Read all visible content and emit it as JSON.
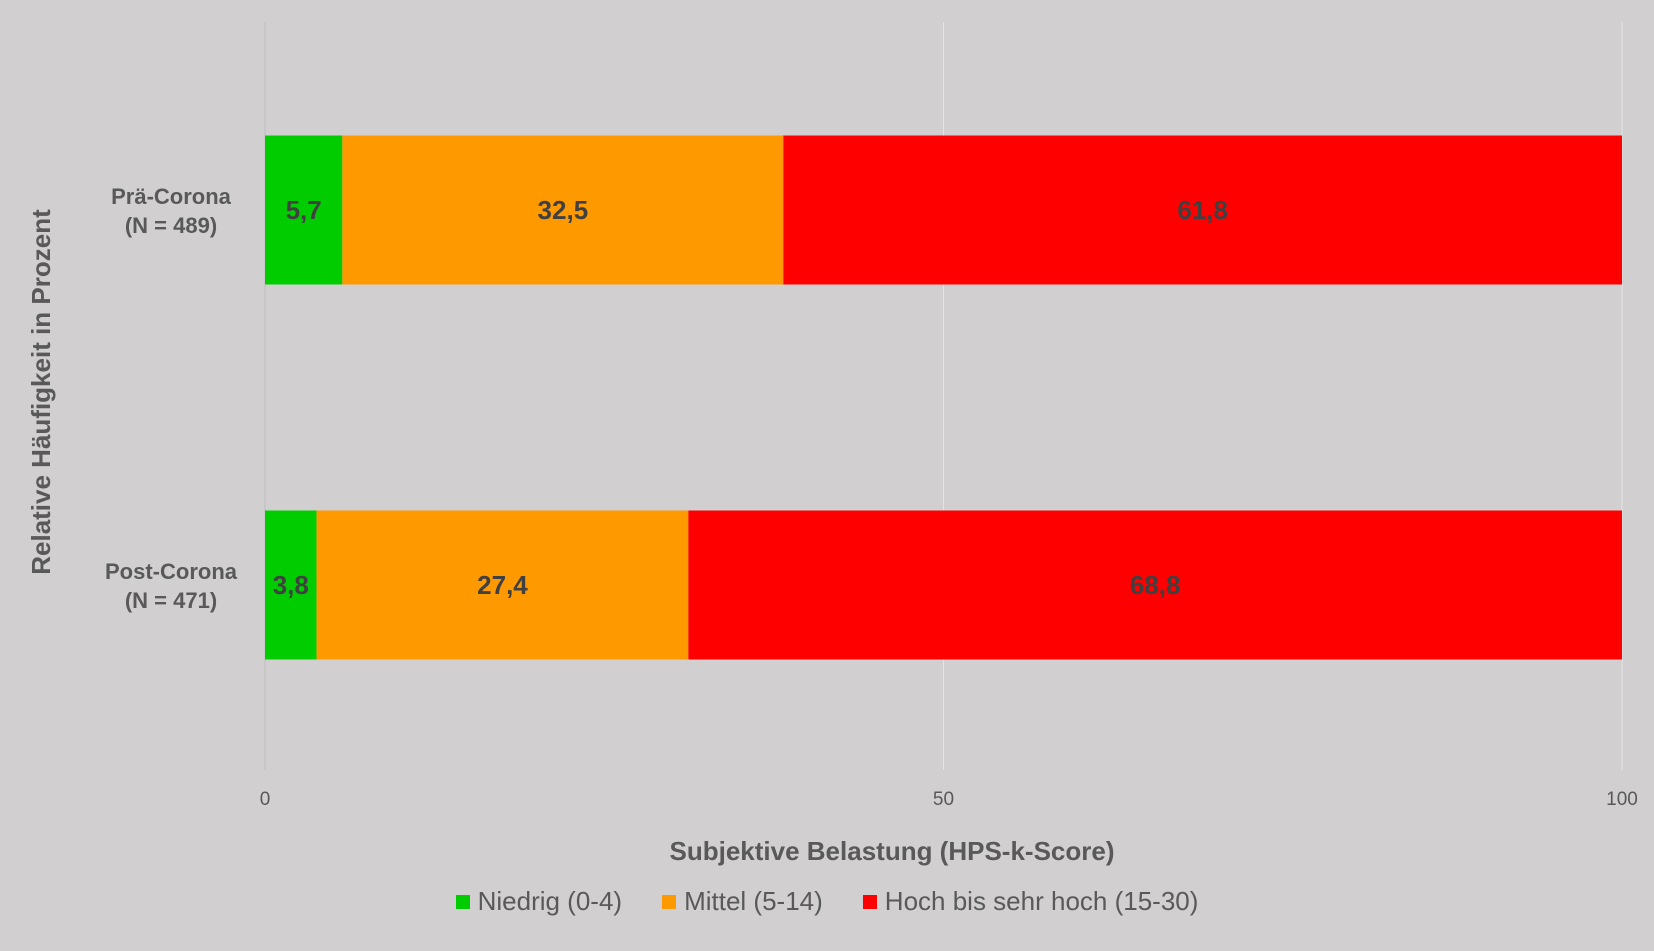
{
  "chart_data": {
    "type": "bar",
    "orientation": "horizontal",
    "stacked": true,
    "categories": [
      "Prä-Corona\n(N = 489)",
      "Post-Corona\n(N = 471)"
    ],
    "series": [
      {
        "name": "Niedrig (0-4)",
        "color": "#00cc00",
        "values": [
          5.7,
          3.8
        ],
        "labels": [
          "5,7",
          "3,8"
        ]
      },
      {
        "name": "Mittel (5-14)",
        "color": "#ff9900",
        "values": [
          32.5,
          27.4
        ],
        "labels": [
          "32,5",
          "27,4"
        ]
      },
      {
        "name": "Hoch bis sehr hoch (15-30)",
        "color": "#ff0000",
        "values": [
          61.8,
          68.8
        ],
        "labels": [
          "61,8",
          "68,8"
        ]
      }
    ],
    "xlabel": "Subjektive Belastung (HPS-k-Score)",
    "ylabel": "Relative Häufigkeit in Prozent",
    "xlim": [
      0,
      100
    ],
    "xticks": [
      0,
      50,
      100
    ],
    "xtick_labels": [
      "0",
      "50",
      "100"
    ],
    "grid": true,
    "legend_position": "bottom"
  }
}
